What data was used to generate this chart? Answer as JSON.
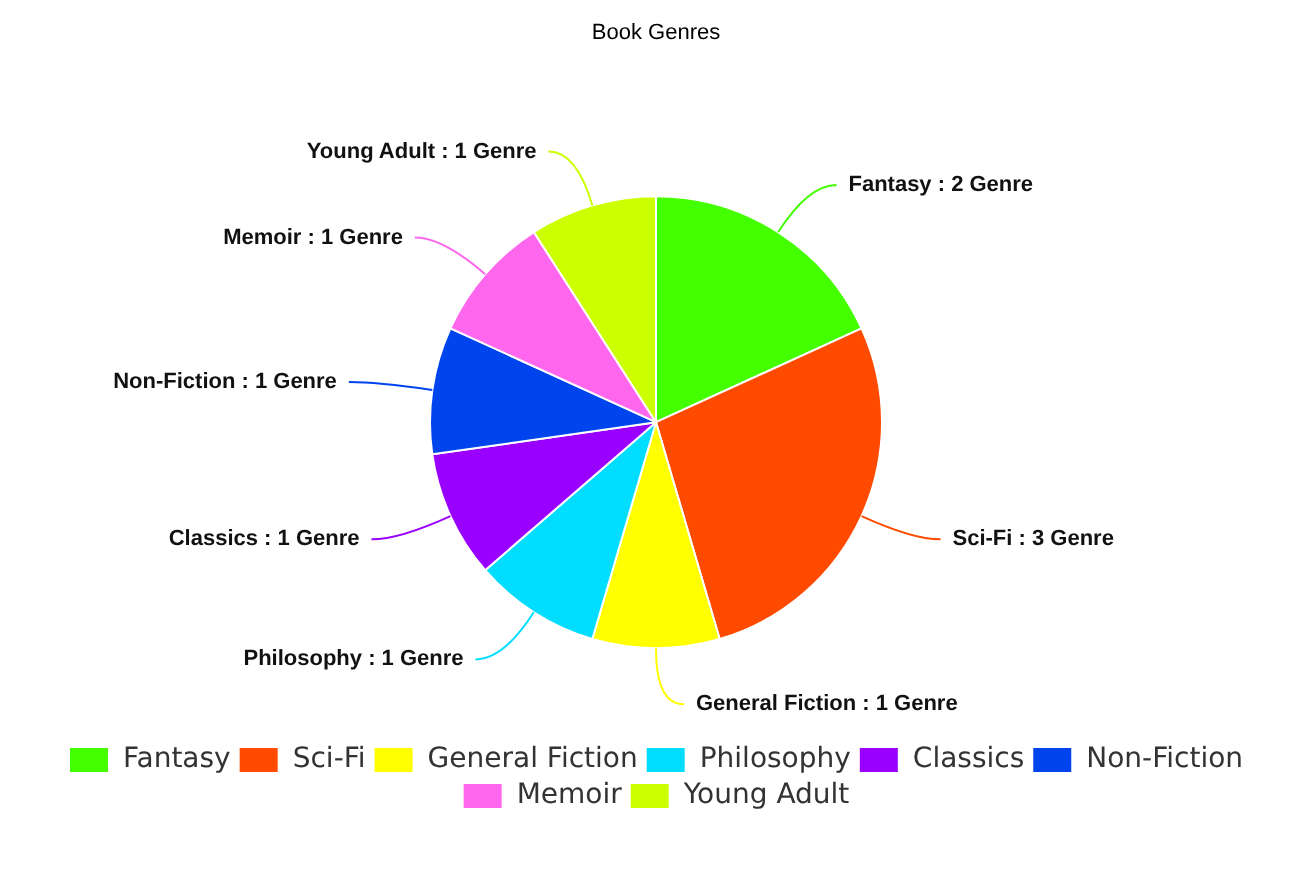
{
  "chart_data": {
    "type": "pie",
    "title": "Book Genres",
    "categories": [
      "Fantasy",
      "Sci-Fi",
      "General Fiction",
      "Philosophy",
      "Classics",
      "Non-Fiction",
      "Memoir",
      "Young Adult"
    ],
    "values": [
      2,
      3,
      1,
      1,
      1,
      1,
      1,
      1
    ],
    "colors": [
      "#44ff00",
      "#ff4a00",
      "#ffff00",
      "#00ddff",
      "#9900ff",
      "#0044ee",
      "#ff66ee",
      "#ccff00"
    ],
    "value_labels": [
      "Fantasy : 2 Genre",
      "Sci-Fi : 3 Genre",
      "General Fiction : 1 Genre",
      "Philosophy : 1 Genre",
      "Classics : 1 Genre",
      "Non-Fiction : 1 Genre",
      "Memoir : 1 Genre",
      "Young Adult : 1 Genre"
    ],
    "legend": "bottom"
  }
}
